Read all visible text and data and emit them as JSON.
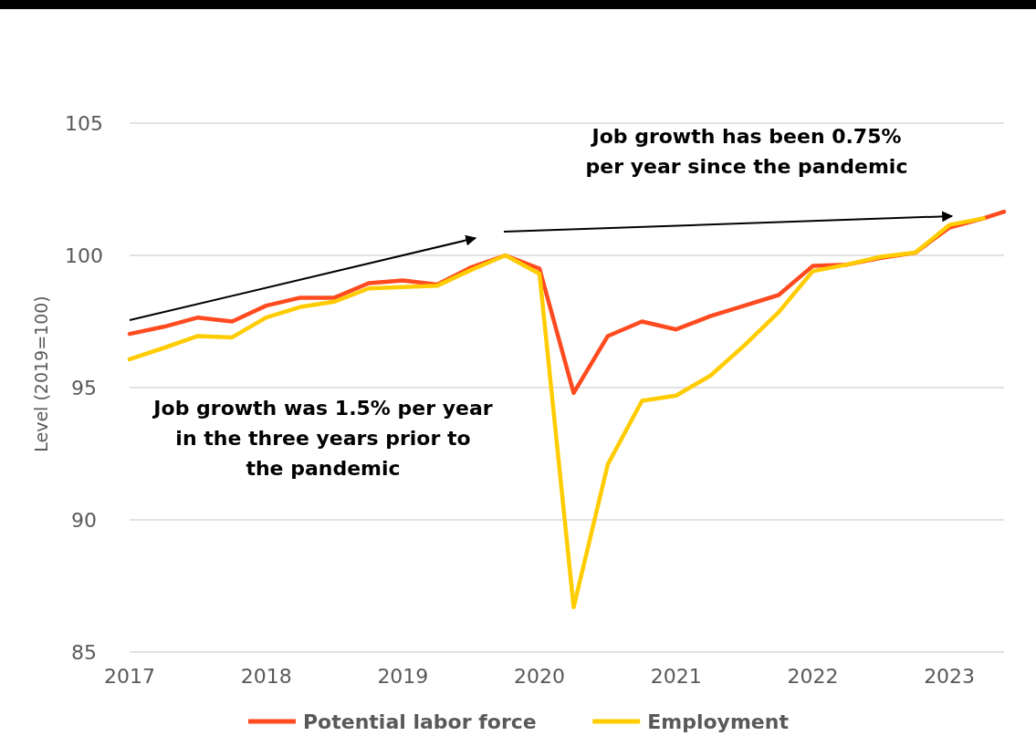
{
  "chart_data": {
    "type": "line",
    "ylabel": "Level (2019=100)",
    "xlim": [
      2017,
      2023.4
    ],
    "xticks": [
      2017,
      2018,
      2019,
      2020,
      2021,
      2022,
      2023
    ],
    "ylim": [
      85,
      105
    ],
    "yticks": [
      85,
      90,
      95,
      100,
      105
    ],
    "grid": "y",
    "legend": "bottom",
    "line_style": "solid",
    "marker": "none",
    "annotations": [
      "Job growth has been 0.75% per year since the pandemic",
      "Job growth was 1.5% per year in the three years prior to the pandemic"
    ],
    "series": [
      {
        "name": "Potential labor force",
        "color": "#ff4b1f",
        "x": [
          2017,
          2017.25,
          2017.5,
          2017.75,
          2018,
          2018.25,
          2018.5,
          2018.75,
          2019,
          2019.25,
          2019.5,
          2019.75,
          2020,
          2020.25,
          2020.5,
          2020.75,
          2021,
          2021.25,
          2021.5,
          2021.75,
          2022,
          2022.25,
          2022.5,
          2022.75,
          2023,
          2023.25,
          2023.4
        ],
        "values": [
          97.03,
          97.3,
          97.65,
          97.5,
          98.1,
          98.4,
          98.4,
          98.95,
          99.05,
          98.9,
          99.55,
          100,
          99.5,
          94.8,
          96.95,
          97.5,
          97.2,
          97.7,
          98.1,
          98.5,
          99.6,
          99.65,
          99.9,
          100.1,
          101.05,
          101.4,
          101.65
        ]
      },
      {
        "name": "Employment",
        "color": "#ffcc00",
        "x": [
          2017,
          2017.25,
          2017.5,
          2017.75,
          2018,
          2018.25,
          2018.5,
          2018.75,
          2019,
          2019.25,
          2019.5,
          2019.75,
          2020,
          2020.25,
          2020.5,
          2020.75,
          2021,
          2021.25,
          2021.5,
          2021.75,
          2022,
          2022.25,
          2022.5,
          2022.75,
          2023,
          2023.25
        ],
        "values": [
          96.07,
          96.5,
          96.95,
          96.9,
          97.65,
          98.05,
          98.25,
          98.75,
          98.8,
          98.85,
          99.45,
          100,
          99.3,
          86.7,
          92.1,
          94.5,
          94.7,
          95.45,
          96.6,
          97.85,
          99.4,
          99.65,
          99.95,
          100.1,
          101.15,
          101.4
        ]
      }
    ]
  }
}
